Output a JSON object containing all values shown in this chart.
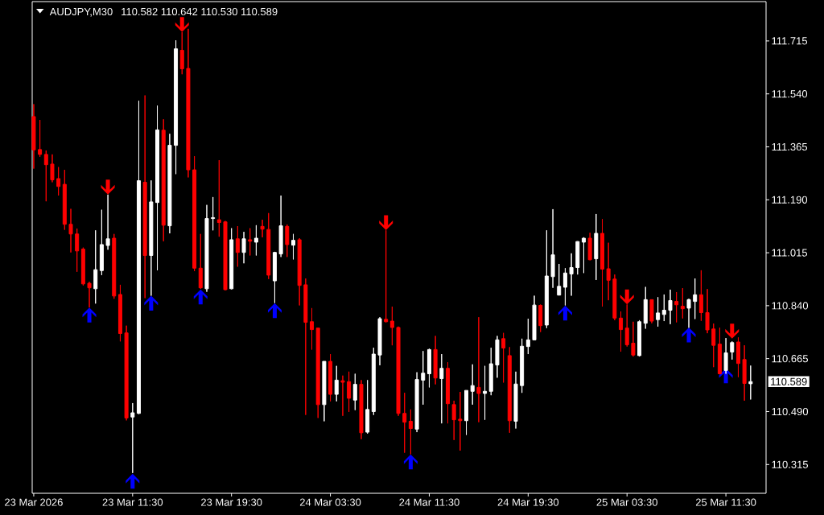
{
  "chart_data": {
    "type": "candlestick",
    "title": "AUDJPY,M30",
    "subtitle": "110.582 110.642 110.530 110.589",
    "categories": [
      "23 Mar 2026",
      null,
      null,
      null,
      null,
      null,
      null,
      null,
      null,
      null,
      null,
      null,
      null,
      null,
      null,
      null,
      "23 Mar 11:30",
      null,
      null,
      null,
      null,
      null,
      null,
      null,
      null,
      null,
      null,
      null,
      null,
      null,
      null,
      null,
      "23 Mar 19:30",
      null,
      null,
      null,
      null,
      null,
      null,
      null,
      null,
      null,
      null,
      null,
      null,
      null,
      null,
      null,
      "24 Mar 03:30",
      null,
      null,
      null,
      null,
      null,
      null,
      null,
      null,
      null,
      null,
      null,
      null,
      null,
      null,
      null,
      "24 Mar 11:30",
      null,
      null,
      null,
      null,
      null,
      null,
      null,
      null,
      null,
      null,
      null,
      null,
      null,
      null,
      null,
      "24 Mar 19:30",
      null,
      null,
      null,
      null,
      null,
      null,
      null,
      null,
      null,
      null,
      null,
      null,
      null,
      null,
      null,
      "25 Mar 03:30",
      null,
      null,
      null,
      null,
      null,
      null,
      null,
      null,
      null,
      null,
      null,
      null,
      null,
      null,
      null,
      "25 Mar 11:30",
      null,
      null,
      null,
      null
    ],
    "ohlc": [
      [
        111.465,
        111.506,
        111.293,
        111.355
      ],
      [
        111.356,
        111.454,
        111.332,
        111.34
      ],
      [
        111.34,
        111.353,
        111.185,
        111.306
      ],
      [
        111.308,
        111.34,
        111.248,
        111.256
      ],
      [
        111.26,
        111.298,
        111.204,
        111.234
      ],
      [
        111.241,
        111.289,
        111.091,
        111.109
      ],
      [
        111.109,
        111.16,
        111.016,
        111.077
      ],
      [
        111.077,
        111.095,
        110.952,
        111.021
      ],
      [
        111.027,
        111.032,
        110.907,
        110.912
      ],
      [
        110.914,
        110.919,
        110.834,
        110.899
      ],
      [
        110.896,
        111.089,
        110.847,
        110.959
      ],
      [
        110.956,
        111.157,
        110.941,
        111.042
      ],
      [
        111.039,
        111.207,
        111.025,
        111.061
      ],
      [
        111.063,
        111.077,
        110.863,
        110.872
      ],
      [
        110.877,
        110.909,
        110.722,
        110.748
      ],
      [
        110.75,
        110.774,
        110.461,
        110.469
      ],
      [
        110.472,
        110.518,
        110.287,
        110.486
      ],
      [
        110.484,
        111.517,
        110.482,
        111.253
      ],
      [
        111.248,
        111.535,
        110.865,
        111.006
      ],
      [
        111.006,
        111.254,
        110.873,
        111.183
      ],
      [
        111.181,
        111.501,
        110.957,
        111.421
      ],
      [
        111.42,
        111.456,
        111.053,
        111.106
      ],
      [
        111.104,
        111.408,
        111.079,
        111.37
      ],
      [
        111.37,
        111.717,
        111.275,
        111.689
      ],
      [
        111.684,
        111.744,
        111.605,
        111.623
      ],
      [
        111.624,
        111.755,
        111.264,
        111.289
      ],
      [
        111.289,
        111.334,
        110.954,
        110.964
      ],
      [
        110.964,
        111.077,
        110.896,
        110.899
      ],
      [
        110.896,
        111.173,
        110.886,
        111.128
      ],
      [
        111.128,
        111.199,
        111.089,
        111.131
      ],
      [
        111.124,
        111.321,
        111.068,
        111.115
      ],
      [
        111.117,
        111.12,
        110.891,
        110.893
      ],
      [
        110.896,
        111.096,
        110.894,
        111.058
      ],
      [
        111.061,
        111.103,
        110.969,
        111.016
      ],
      [
        111.016,
        111.084,
        110.98,
        111.061
      ],
      [
        111.058,
        111.096,
        111.006,
        111.053
      ],
      [
        111.05,
        111.106,
        111.006,
        111.063
      ],
      [
        111.102,
        111.124,
        111.066,
        111.093
      ],
      [
        111.092,
        111.146,
        110.928,
        110.941
      ],
      [
        110.922,
        111.018,
        110.849,
        111.016
      ],
      [
        111.011,
        111.204,
        111.001,
        111.104
      ],
      [
        111.102,
        111.108,
        111.001,
        111.042
      ],
      [
        111.04,
        111.077,
        110.993,
        111.056
      ],
      [
        111.058,
        111.063,
        110.841,
        110.907
      ],
      [
        110.909,
        110.93,
        110.479,
        110.785
      ],
      [
        110.787,
        110.832,
        110.695,
        110.761
      ],
      [
        110.766,
        110.766,
        110.469,
        110.513
      ],
      [
        110.513,
        110.656,
        110.458,
        110.656
      ],
      [
        110.656,
        110.68,
        110.524,
        110.547
      ],
      [
        110.547,
        110.641,
        110.524,
        110.594
      ],
      [
        110.592,
        110.609,
        110.476,
        110.587
      ],
      [
        110.589,
        110.622,
        110.489,
        110.534
      ],
      [
        110.528,
        110.615,
        110.495,
        110.58
      ],
      [
        110.58,
        110.594,
        110.399,
        110.42
      ],
      [
        110.422,
        110.594,
        110.417,
        110.497
      ],
      [
        110.49,
        110.701,
        110.479,
        110.68
      ],
      [
        110.677,
        110.802,
        110.643,
        110.797
      ],
      [
        110.795,
        111.089,
        110.785,
        110.787
      ],
      [
        110.789,
        110.837,
        110.709,
        110.768
      ],
      [
        110.768,
        110.771,
        110.476,
        110.484
      ],
      [
        110.484,
        110.552,
        110.354,
        110.455
      ],
      [
        110.458,
        110.497,
        110.349,
        110.434
      ],
      [
        110.432,
        110.62,
        110.422,
        110.596
      ],
      [
        110.594,
        110.69,
        110.513,
        110.617
      ],
      [
        110.615,
        110.698,
        110.57,
        110.695
      ],
      [
        110.695,
        110.74,
        110.58,
        110.601
      ],
      [
        110.599,
        110.68,
        110.451,
        110.633
      ],
      [
        110.633,
        110.653,
        110.451,
        110.516
      ],
      [
        110.513,
        110.526,
        110.396,
        110.463
      ],
      [
        110.465,
        110.555,
        110.361,
        110.46
      ],
      [
        110.46,
        110.56,
        110.413,
        110.56
      ],
      [
        110.557,
        110.646,
        110.513,
        110.576
      ],
      [
        110.57,
        110.802,
        110.455,
        110.55
      ],
      [
        110.55,
        110.641,
        110.463,
        110.557
      ],
      [
        110.557,
        110.701,
        110.544,
        110.648
      ],
      [
        110.644,
        110.74,
        110.602,
        110.727
      ],
      [
        110.731,
        110.75,
        110.586,
        110.7
      ],
      [
        110.675,
        110.703,
        110.42,
        110.46
      ],
      [
        110.458,
        110.622,
        110.434,
        110.581
      ],
      [
        110.576,
        110.731,
        110.552,
        110.706
      ],
      [
        110.705,
        110.797,
        110.68,
        110.727
      ],
      [
        110.727,
        110.873,
        110.726,
        110.842
      ],
      [
        110.841,
        110.844,
        110.753,
        110.774
      ],
      [
        110.776,
        111.089,
        110.766,
        110.938
      ],
      [
        110.936,
        111.159,
        110.899,
        111.008
      ],
      [
        110.875,
        110.978,
        110.874,
        110.904
      ],
      [
        110.901,
        110.964,
        110.841,
        110.948
      ],
      [
        110.945,
        111.013,
        110.873,
        110.966
      ],
      [
        110.966,
        111.053,
        110.943,
        111.052
      ],
      [
        111.05,
        111.066,
        110.948,
        111.063
      ],
      [
        111.063,
        111.081,
        110.99,
        110.992
      ],
      [
        110.995,
        111.143,
        110.925,
        111.079
      ],
      [
        111.079,
        111.126,
        110.837,
        110.961
      ],
      [
        110.962,
        111.048,
        110.858,
        110.924
      ],
      [
        110.928,
        110.943,
        110.792,
        110.799
      ],
      [
        110.799,
        110.821,
        110.688,
        110.761
      ],
      [
        110.766,
        110.844,
        110.705,
        110.711
      ],
      [
        110.716,
        110.787,
        110.672,
        110.677
      ],
      [
        110.675,
        110.792,
        110.672,
        110.787
      ],
      [
        110.782,
        110.902,
        110.764,
        110.86
      ],
      [
        110.86,
        110.86,
        110.782,
        110.789
      ],
      [
        110.794,
        110.868,
        110.771,
        110.816
      ],
      [
        110.811,
        110.877,
        110.789,
        110.825
      ],
      [
        110.825,
        110.893,
        110.779,
        110.857
      ],
      [
        110.854,
        110.885,
        110.785,
        110.843
      ],
      [
        110.838,
        110.898,
        110.798,
        110.83
      ],
      [
        110.832,
        110.863,
        110.767,
        110.86
      ],
      [
        110.854,
        110.93,
        110.796,
        110.876
      ],
      [
        110.876,
        110.957,
        110.79,
        110.817
      ],
      [
        110.817,
        110.895,
        110.749,
        110.76
      ],
      [
        110.763,
        110.781,
        110.637,
        110.709
      ],
      [
        110.713,
        110.767,
        110.613,
        110.615
      ],
      [
        110.626,
        110.733,
        110.615,
        110.684
      ],
      [
        110.687,
        110.722,
        110.662,
        110.718
      ],
      [
        110.72,
        110.735,
        110.604,
        110.649
      ],
      [
        110.662,
        110.709,
        110.526,
        110.583
      ],
      [
        110.582,
        110.642,
        110.53,
        110.589
      ]
    ],
    "colors": [
      "#ff0000",
      "#ff0000",
      "#ff0000",
      "#ff0000",
      "#ff0000",
      "#ff0000",
      "#ff0000",
      "#ff0000",
      "#ff0000",
      "#ff0000",
      "#ffffff",
      "#ffffff",
      "#ffffff",
      "#ff0000",
      "#ff0000",
      "#ff0000",
      "#ffffff",
      "#ffffff",
      "#ff0000",
      "#ffffff",
      "#ffffff",
      "#ff0000",
      "#ffffff",
      "#ffffff",
      "#ff0000",
      "#ff0000",
      "#ff0000",
      "#ff0000",
      "#ffffff",
      "#ffffff",
      "#ff0000",
      "#ff0000",
      "#ffffff",
      "#ff0000",
      "#ffffff",
      "#ff0000",
      "#ffffff",
      "#ff0000",
      "#ff0000",
      "#ffffff",
      "#ffffff",
      "#ff0000",
      "#ffffff",
      "#ff0000",
      "#ff0000",
      "#ff0000",
      "#ff0000",
      "#ffffff",
      "#ff0000",
      "#ffffff",
      "#ff0000",
      "#ff0000",
      "#ffffff",
      "#ff0000",
      "#ffffff",
      "#ffffff",
      "#ffffff",
      "#ff0000",
      "#ff0000",
      "#ff0000",
      "#ff0000",
      "#ff0000",
      "#ffffff",
      "#ffffff",
      "#ffffff",
      "#ff0000",
      "#ffffff",
      "#ff0000",
      "#ff0000",
      "#ff0000",
      "#ffffff",
      "#ffffff",
      "#ff0000",
      "#ffffff",
      "#ffffff",
      "#ffffff",
      "#ff0000",
      "#ff0000",
      "#ffffff",
      "#ffffff",
      "#ffffff",
      "#ffffff",
      "#ff0000",
      "#ffffff",
      "#ffffff",
      "#ffffff",
      "#ffffff",
      "#ffffff",
      "#ffffff",
      "#ffffff",
      "#ff0000",
      "#ffffff",
      "#ff0000",
      "#ff0000",
      "#ff0000",
      "#ff0000",
      "#ff0000",
      "#ff0000",
      "#ffffff",
      "#ffffff",
      "#ff0000",
      "#ffffff",
      "#ffffff",
      "#ffffff",
      "#ff0000",
      "#ff0000",
      "#ffffff",
      "#ffffff",
      "#ff0000",
      "#ff0000",
      "#ff0000",
      "#ff0000",
      "#ffffff",
      "#ffffff",
      "#ff0000",
      "#ff0000",
      "#ffffff"
    ],
    "ylim": [
      110.22,
      111.845
    ],
    "yticks": [
      110.315,
      {
        "value": 110.49,
        "label": "110.490"
      },
      110.665,
      {
        "value": 110.84,
        "label": "110.840"
      },
      111.015,
      {
        "value": 111.19,
        "label": "111.190"
      },
      111.365,
      {
        "value": 111.54,
        "label": "111.540"
      },
      111.715
    ],
    "annotations": [
      "110.589"
    ],
    "marker": "triangle",
    "series": [
      {
        "type": "scatter",
        "color": "#ff0000",
        "values": [
          null,
          null,
          null,
          null,
          null,
          null,
          null,
          null,
          null,
          null,
          null,
          null,
          111.232,
          null,
          null,
          null,
          null,
          null,
          null,
          null,
          null,
          null,
          null,
          null,
          111.769,
          null,
          null,
          null,
          null,
          null,
          null,
          null,
          null,
          null,
          null,
          null,
          null,
          null,
          null,
          null,
          null,
          null,
          null,
          null,
          null,
          null,
          null,
          null,
          null,
          null,
          null,
          null,
          null,
          null,
          null,
          null,
          null,
          111.114,
          null,
          null,
          null,
          null,
          null,
          null,
          null,
          null,
          null,
          null,
          null,
          null,
          null,
          null,
          null,
          null,
          null,
          null,
          null,
          null,
          null,
          null,
          null,
          null,
          null,
          null,
          null,
          null,
          null,
          null,
          null,
          null,
          null,
          null,
          null,
          null,
          null,
          null,
          110.869,
          null,
          null,
          null,
          null,
          null,
          null,
          null,
          null,
          null,
          null,
          null,
          null,
          null,
          null,
          null,
          null,
          110.756,
          null,
          null,
          null
        ]
      },
      {
        "type": "scatter",
        "color": "#0000ff",
        "values": [
          null,
          null,
          null,
          null,
          null,
          null,
          null,
          null,
          null,
          110.809,
          null,
          null,
          null,
          null,
          null,
          null,
          110.26,
          null,
          null,
          110.848,
          null,
          null,
          null,
          null,
          null,
          null,
          null,
          110.869,
          null,
          null,
          null,
          null,
          null,
          null,
          null,
          null,
          null,
          null,
          null,
          110.824,
          null,
          null,
          null,
          null,
          null,
          null,
          null,
          null,
          null,
          null,
          null,
          null,
          null,
          null,
          null,
          null,
          null,
          null,
          null,
          null,
          null,
          110.324,
          null,
          null,
          null,
          null,
          null,
          null,
          null,
          null,
          null,
          null,
          null,
          null,
          null,
          null,
          null,
          null,
          null,
          null,
          null,
          null,
          null,
          null,
          null,
          null,
          110.816,
          null,
          null,
          null,
          null,
          null,
          null,
          null,
          null,
          null,
          null,
          null,
          null,
          null,
          null,
          null,
          null,
          null,
          null,
          null,
          110.743,
          null,
          null,
          null,
          null,
          null,
          110.608,
          null,
          null,
          null,
          null
        ]
      }
    ]
  }
}
